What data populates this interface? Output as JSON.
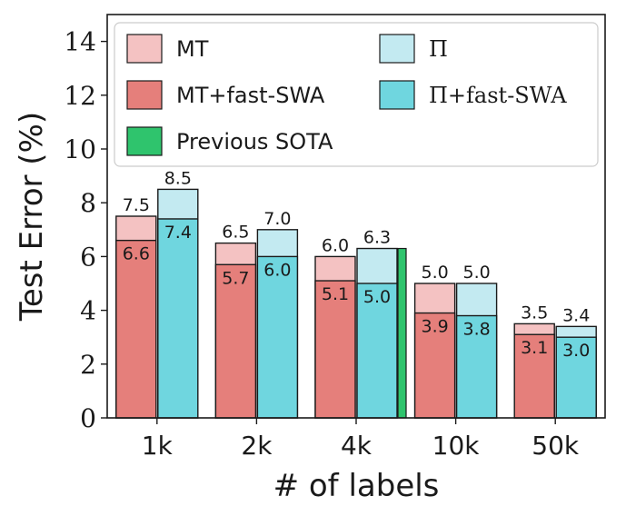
{
  "chart_data": {
    "type": "bar",
    "xlabel": "# of labels",
    "ylabel": "Test Error (%)",
    "ylim": [
      0,
      15
    ],
    "yticks": [
      0,
      2,
      4,
      6,
      8,
      10,
      12,
      14
    ],
    "categories": [
      "1k",
      "2k",
      "4k",
      "10k",
      "50k"
    ],
    "series": [
      {
        "name": "MT",
        "values": [
          7.5,
          6.5,
          6.0,
          5.0,
          3.5
        ],
        "color": "#f4c2c2"
      },
      {
        "name": "MT+fast-SWA",
        "values": [
          6.6,
          5.7,
          5.1,
          3.9,
          3.1
        ],
        "color": "#e57f7b"
      },
      {
        "name": "Π",
        "values": [
          8.5,
          7.0,
          6.3,
          5.0,
          3.4
        ],
        "color": "#c3eaf1"
      },
      {
        "name": "Π+fast-SWA",
        "values": [
          7.4,
          6.0,
          5.0,
          3.8,
          3.0
        ],
        "color": "#6fd6df"
      },
      {
        "name": "Previous SOTA",
        "values": [
          null,
          null,
          6.3,
          null,
          null
        ],
        "color": "#2fc46d"
      }
    ],
    "top_labels": {
      "MT": [
        "7.5",
        "6.5",
        "6.0",
        "5.0",
        "3.5"
      ],
      "Π": [
        "8.5",
        "7.0",
        "6.3",
        "5.0",
        "3.4"
      ]
    },
    "inner_labels": {
      "MT+fast-SWA": [
        "6.6",
        "5.7",
        "5.1",
        "3.9",
        "3.1"
      ],
      "Π+fast-SWA": [
        "7.4",
        "6.0",
        "5.0",
        "3.8",
        "3.0"
      ]
    },
    "legend": {
      "position": "top",
      "entries": [
        "MT",
        "Π",
        "MT+fast-SWA",
        "Π+fast-SWA",
        "Previous SOTA"
      ]
    },
    "grid": false
  }
}
